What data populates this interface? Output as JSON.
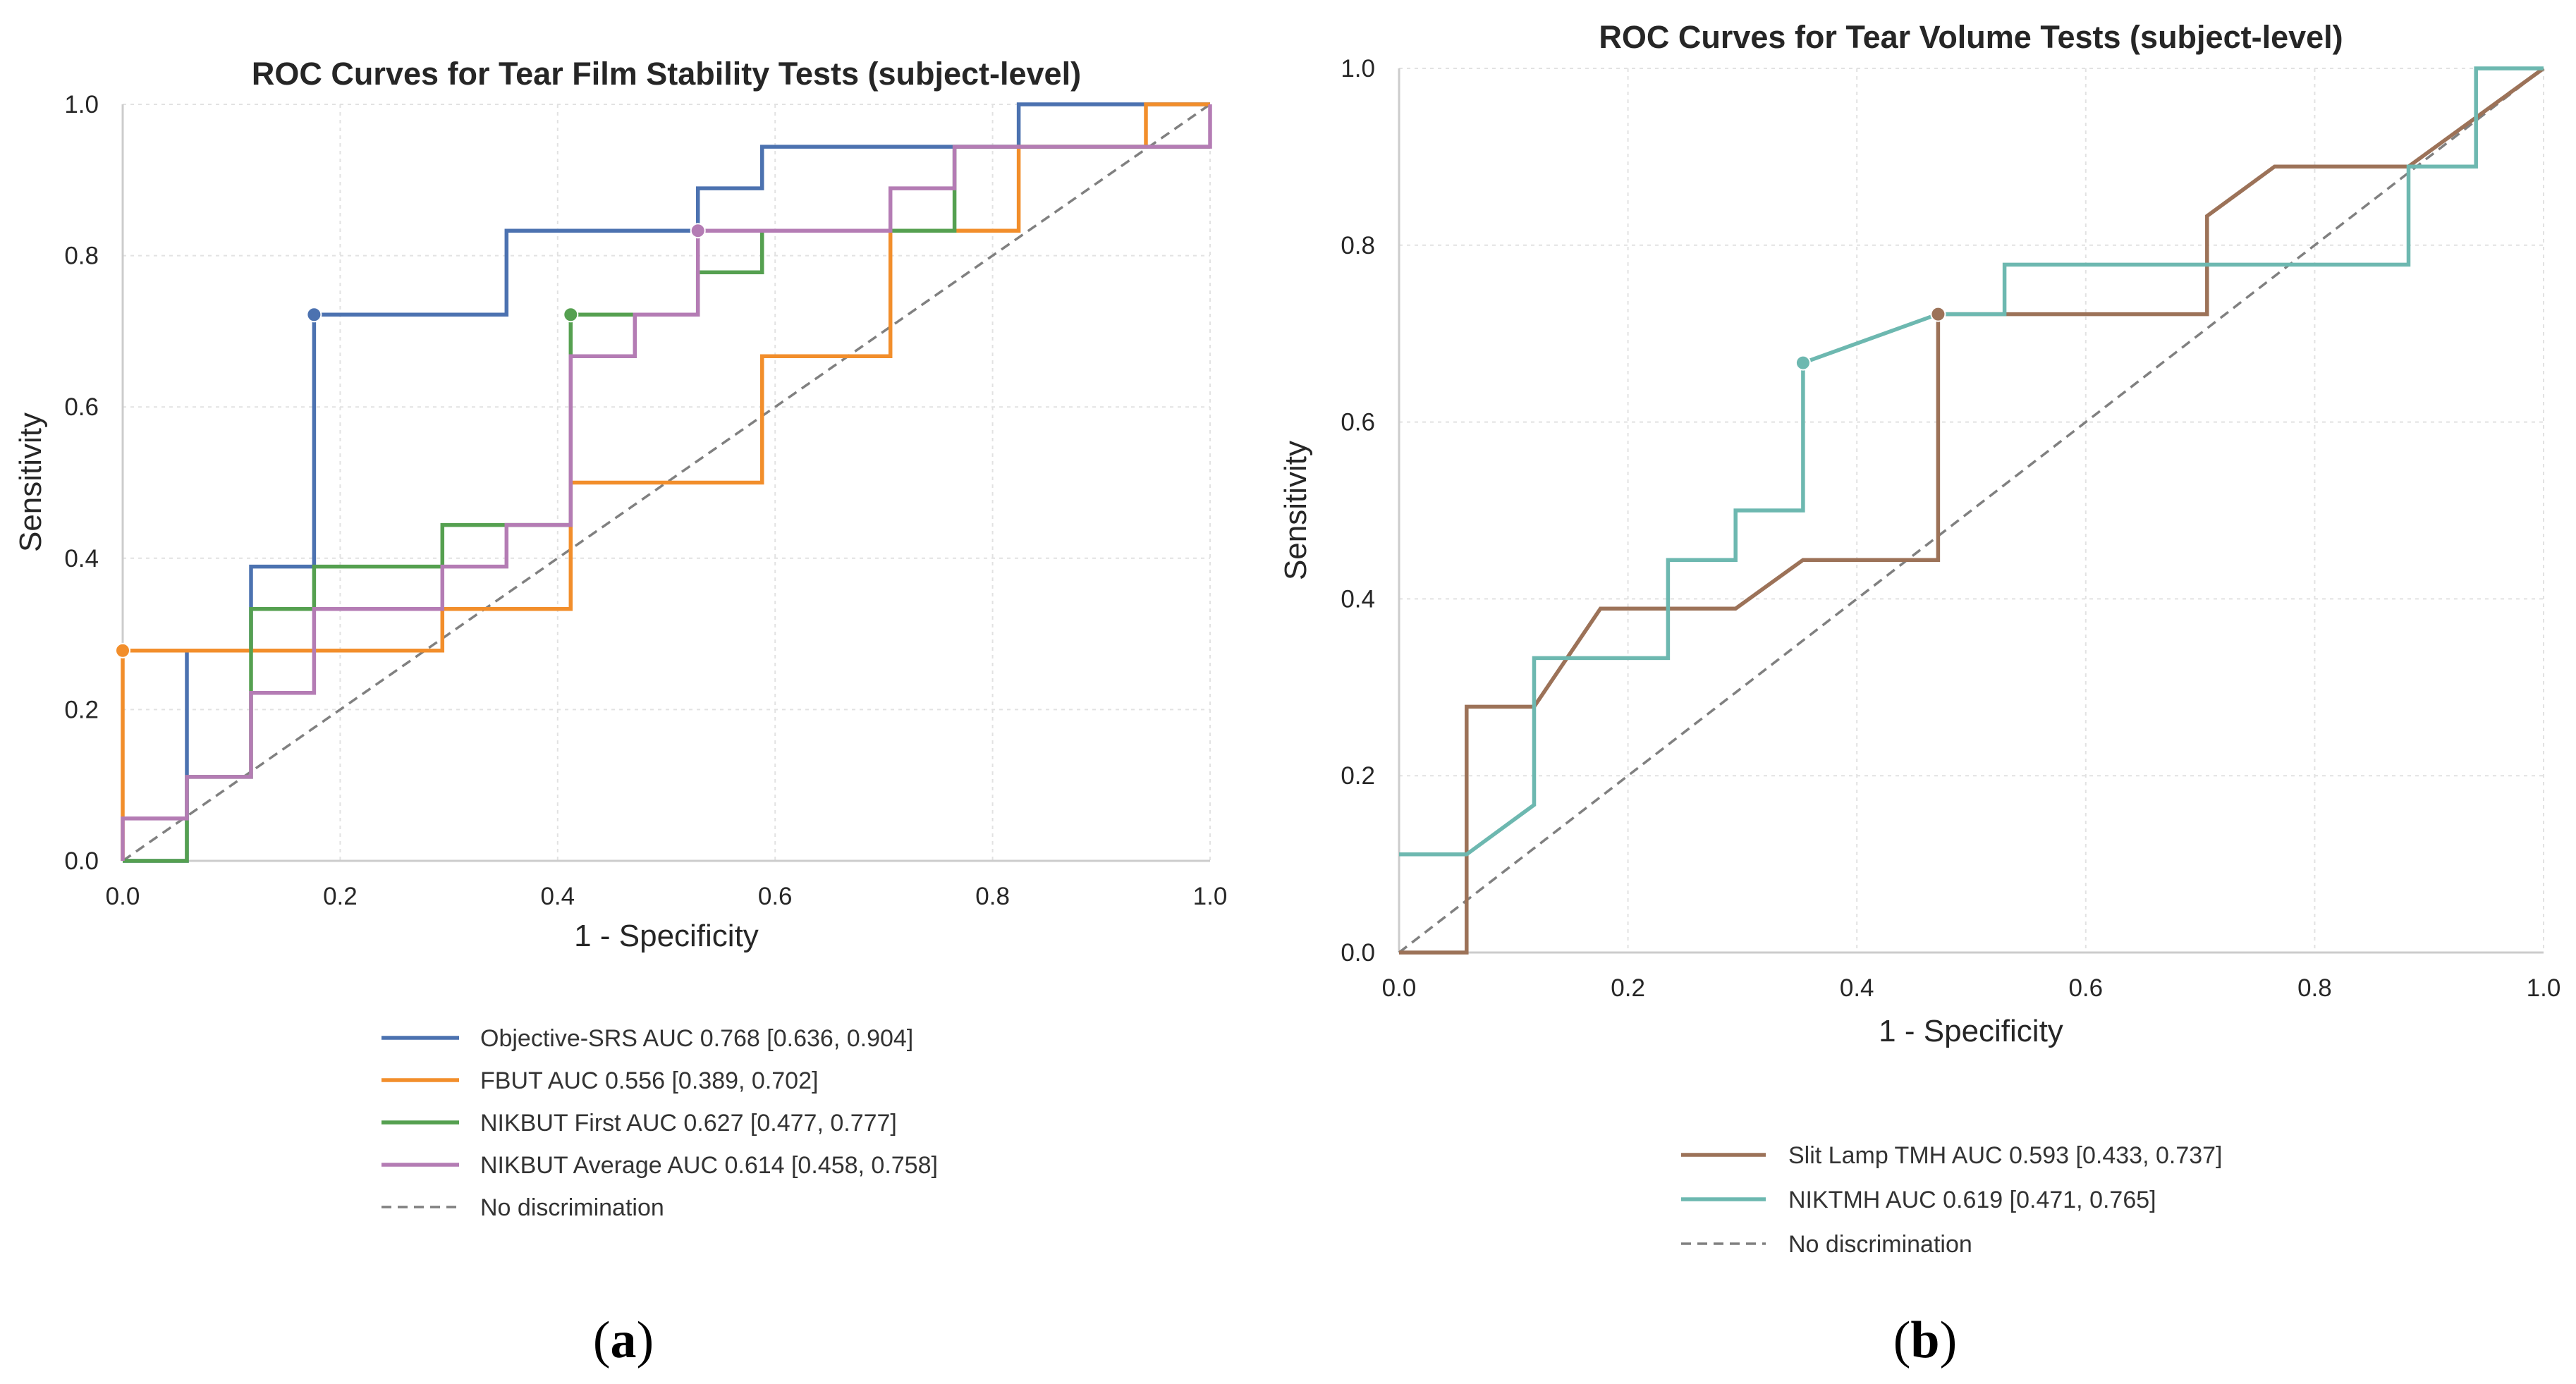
{
  "chart_data": [
    {
      "type": "line",
      "title": "ROC Curves for Tear Film Stability Tests (subject-level)",
      "xlabel": "1 - Specificity",
      "ylabel": "Sensitivity",
      "xlim": [
        0,
        1
      ],
      "ylim": [
        0,
        1
      ],
      "xticks": [
        "0.0",
        "0.2",
        "0.4",
        "0.6",
        "0.8",
        "1.0"
      ],
      "yticks": [
        "0.0",
        "0.2",
        "0.4",
        "0.6",
        "0.8",
        "1.0"
      ],
      "grid": true,
      "legend_position": "below",
      "panel_label": "a",
      "series": [
        {
          "name": "Objective-SRS",
          "legend": "Objective-SRS  AUC 0.768 [0.636, 0.904]",
          "color": "#4c72b0",
          "x": [
            0,
            0.059,
            0.059,
            0.118,
            0.118,
            0.176,
            0.176,
            0.353,
            0.353,
            0.529,
            0.529,
            0.588,
            0.588,
            0.824,
            0.824,
            1.0
          ],
          "y": [
            0,
            0,
            0.278,
            0.278,
            0.389,
            0.389,
            0.722,
            0.722,
            0.833,
            0.833,
            0.889,
            0.889,
            0.944,
            0.944,
            1.0,
            1.0
          ],
          "optimal_point": [
            0.176,
            0.722
          ]
        },
        {
          "name": "FBUT",
          "legend": "FBUT  AUC 0.556 [0.389, 0.702]",
          "color": "#f28e2b",
          "x": [
            0,
            0,
            0.294,
            0.294,
            0.412,
            0.412,
            0.588,
            0.588,
            0.706,
            0.706,
            0.824,
            0.824,
            0.941,
            0.941,
            1.0
          ],
          "y": [
            0,
            0.278,
            0.278,
            0.333,
            0.333,
            0.5,
            0.5,
            0.667,
            0.667,
            0.833,
            0.833,
            0.944,
            0.944,
            1.0,
            1.0
          ],
          "optimal_point": [
            0,
            0.278
          ]
        },
        {
          "name": "NIKBUT First",
          "legend": "NIKBUT First  AUC 0.627 [0.477, 0.777]",
          "color": "#55a050",
          "x": [
            0,
            0.059,
            0.059,
            0.118,
            0.118,
            0.176,
            0.176,
            0.294,
            0.294,
            0.412,
            0.412,
            0.529,
            0.529,
            0.588,
            0.588,
            0.765,
            0.765,
            1.0
          ],
          "y": [
            0,
            0,
            0.111,
            0.111,
            0.333,
            0.333,
            0.389,
            0.389,
            0.444,
            0.444,
            0.722,
            0.722,
            0.778,
            0.778,
            0.833,
            0.833,
            0.944,
            0.944
          ],
          "optimal_point": [
            0.412,
            0.722
          ]
        },
        {
          "name": "NIKBUT Average",
          "legend": "NIKBUT Average  AUC 0.614 [0.458, 0.758]",
          "color": "#b47cb4",
          "x": [
            0,
            0,
            0.059,
            0.059,
            0.118,
            0.118,
            0.176,
            0.176,
            0.294,
            0.294,
            0.353,
            0.353,
            0.412,
            0.412,
            0.471,
            0.471,
            0.529,
            0.529,
            0.706,
            0.706,
            0.765,
            0.765,
            1.0,
            1.0
          ],
          "y": [
            0,
            0.056,
            0.056,
            0.111,
            0.111,
            0.222,
            0.222,
            0.333,
            0.333,
            0.389,
            0.389,
            0.444,
            0.444,
            0.667,
            0.667,
            0.722,
            0.722,
            0.833,
            0.833,
            0.889,
            0.889,
            0.944,
            0.944,
            1.0
          ],
          "optimal_point": [
            0.529,
            0.833
          ]
        },
        {
          "name": "No discrimination",
          "legend": "No discrimination",
          "color": "#808080",
          "dashed": true,
          "x": [
            0,
            1
          ],
          "y": [
            0,
            1
          ]
        }
      ]
    },
    {
      "type": "line",
      "title": "ROC Curves for Tear Volume Tests (subject-level)",
      "xlabel": "1 - Specificity",
      "ylabel": "Sensitivity",
      "xlim": [
        0,
        1
      ],
      "ylim": [
        0,
        1
      ],
      "xticks": [
        "0.0",
        "0.2",
        "0.4",
        "0.6",
        "0.8",
        "1.0"
      ],
      "yticks": [
        "0.0",
        "0.2",
        "0.4",
        "0.6",
        "0.8",
        "1.0"
      ],
      "grid": true,
      "legend_position": "below",
      "panel_label": "b",
      "series": [
        {
          "name": "Slit Lamp TMH",
          "legend": "Slit Lamp TMH  AUC 0.593 [0.433, 0.737]",
          "color": "#9c7258",
          "x": [
            0,
            0.059,
            0.059,
            0.118,
            0.176,
            0.294,
            0.353,
            0.471,
            0.471,
            0.706,
            0.706,
            0.765,
            0.882,
            1.0
          ],
          "y": [
            0,
            0,
            0.278,
            0.278,
            0.389,
            0.389,
            0.444,
            0.444,
            0.722,
            0.722,
            0.833,
            0.889,
            0.889,
            1.0
          ],
          "optimal_point": [
            0.471,
            0.722
          ]
        },
        {
          "name": "NIKTMH",
          "legend": "NIKTMH  AUC 0.619 [0.471, 0.765]",
          "color": "#6db8b0",
          "x": [
            0,
            0.059,
            0.118,
            0.118,
            0.235,
            0.235,
            0.294,
            0.294,
            0.353,
            0.353,
            0.471,
            0.529,
            0.529,
            0.882,
            0.882,
            0.941,
            0.941,
            1.0
          ],
          "y": [
            0.111,
            0.111,
            0.167,
            0.333,
            0.333,
            0.444,
            0.444,
            0.5,
            0.5,
            0.667,
            0.722,
            0.722,
            0.778,
            0.778,
            0.889,
            0.889,
            1.0,
            1.0
          ],
          "optimal_point": [
            0.353,
            0.667
          ]
        },
        {
          "name": "No discrimination",
          "legend": "No discrimination",
          "color": "#808080",
          "dashed": true,
          "x": [
            0,
            1
          ],
          "y": [
            0,
            1
          ]
        }
      ]
    }
  ]
}
